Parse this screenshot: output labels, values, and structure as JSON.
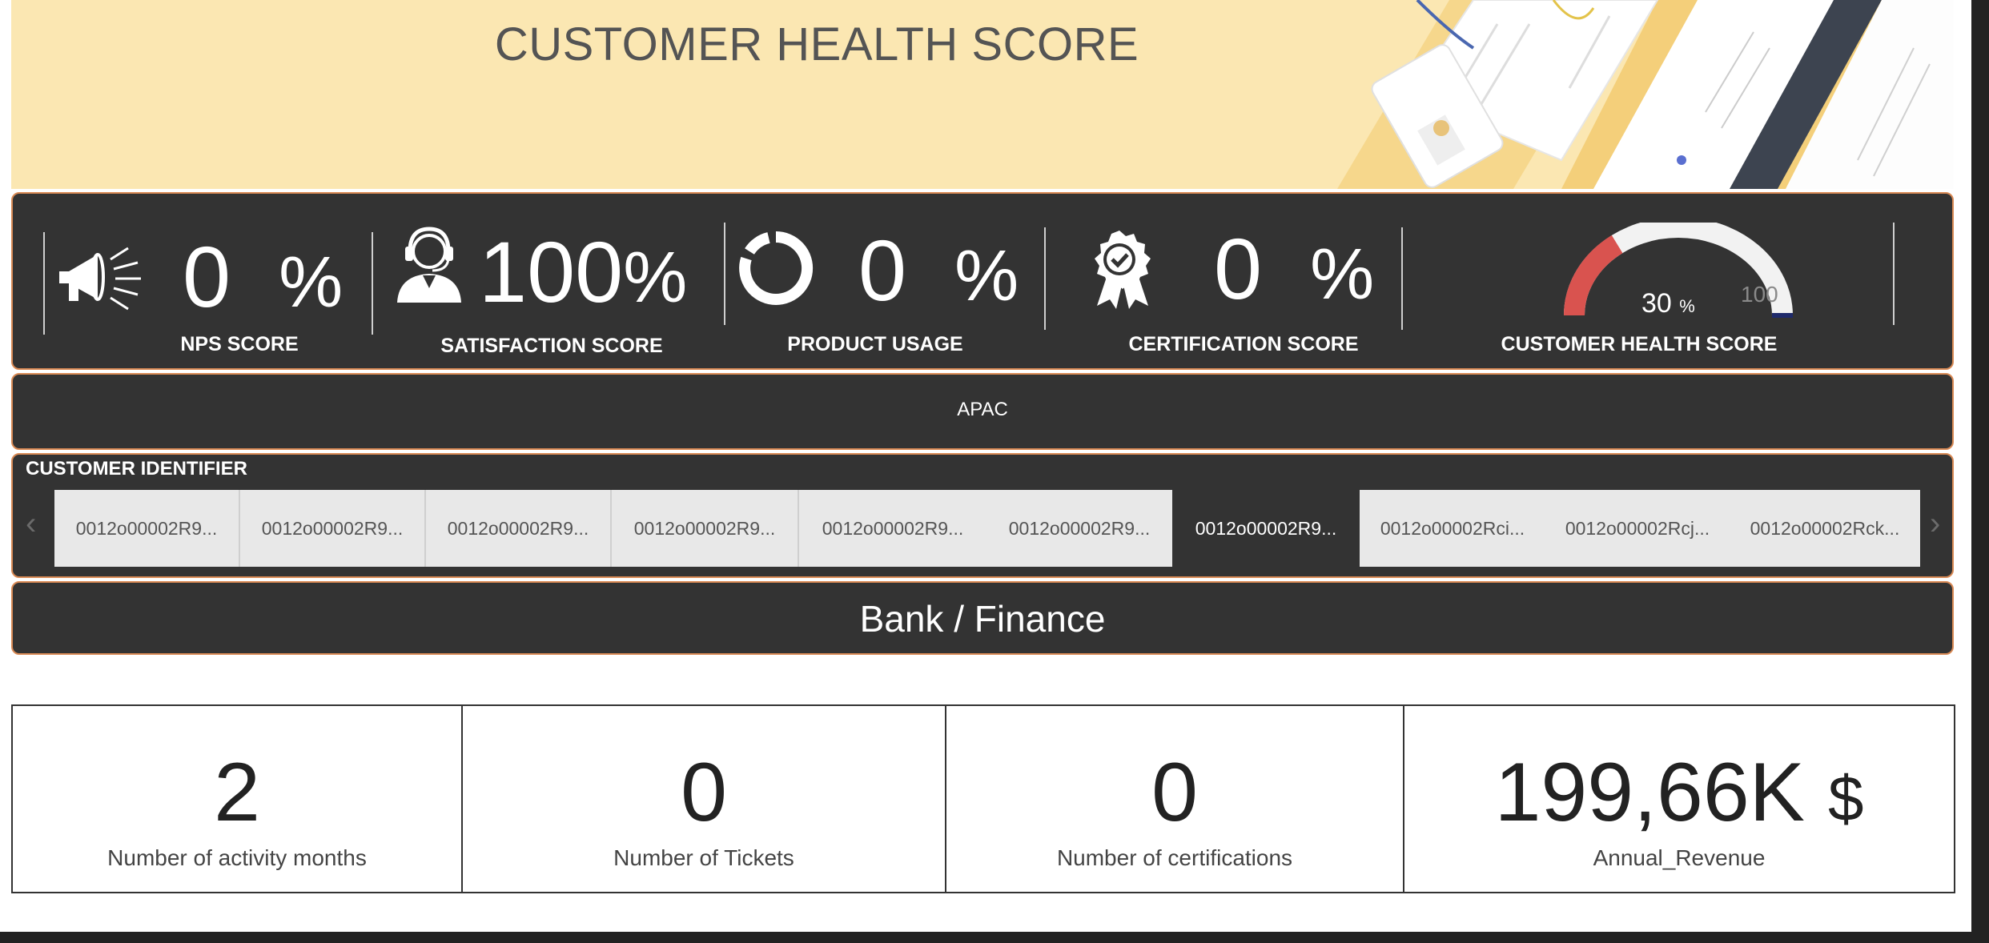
{
  "header": {
    "title": "CUSTOMER HEALTH SCORE"
  },
  "kpis": {
    "nps": {
      "value": "0",
      "unit": "%",
      "label": "NPS SCORE",
      "icon": "megaphone-icon"
    },
    "satisfaction": {
      "value": "100",
      "unit": "%",
      "label": "SATISFACTION SCORE",
      "icon": "support-agent-icon"
    },
    "usage": {
      "value": "0",
      "unit": "%",
      "label": "PRODUCT USAGE",
      "icon": "donut-icon"
    },
    "certification": {
      "value": "0",
      "unit": "%",
      "label": "CERTIFICATION SCORE",
      "icon": "award-badge-icon"
    },
    "health": {
      "value": "30",
      "unit": "%",
      "label": "CUSTOMER HEALTH SCORE",
      "max_label": "100",
      "gauge_fraction": 0.3,
      "gauge_fill_color": "#d9534f",
      "gauge_track_color": "#f2f2f2",
      "gauge_target_color": "#1f2a6b"
    }
  },
  "region": {
    "label": "APAC"
  },
  "customer_identifier": {
    "label": "CUSTOMER IDENTIFIER",
    "items": [
      {
        "label": "0012o00002R9..."
      },
      {
        "label": "0012o00002R9..."
      },
      {
        "label": "0012o00002R9..."
      },
      {
        "label": "0012o00002R9..."
      },
      {
        "label": "0012o00002R9..."
      },
      {
        "label": "0012o00002R9..."
      },
      {
        "label": "0012o00002R9...",
        "selected": true
      },
      {
        "label": "0012o00002Rci..."
      },
      {
        "label": "0012o00002Rcj..."
      },
      {
        "label": "0012o00002Rck..."
      }
    ],
    "prev_icon": "chevron-left-icon",
    "next_icon": "chevron-right-icon"
  },
  "industry": {
    "label": "Bank / Finance"
  },
  "cards": [
    {
      "value": "2",
      "label": "Number of activity months"
    },
    {
      "value": "0",
      "label": "Number of Tickets"
    },
    {
      "value": "0",
      "label": "Number of certifications"
    },
    {
      "value": "199,66K",
      "unit": "$",
      "label": "Annual_Revenue"
    }
  ],
  "colors": {
    "banner": "#fbe7b2",
    "panel": "#333333",
    "panel_border": "#d98a55",
    "chip": "#e8e8e8"
  }
}
